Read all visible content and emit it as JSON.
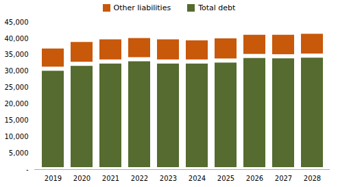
{
  "chart_data": {
    "type": "bar",
    "stacked": true,
    "categories": [
      "2019",
      "2020",
      "2021",
      "2022",
      "2023",
      "2024",
      "2025",
      "2026",
      "2027",
      "2028"
    ],
    "series": [
      {
        "name": "Total debt",
        "color": "#556B2F",
        "values": [
          30700,
          32200,
          32900,
          33600,
          32900,
          32900,
          33200,
          34600,
          34500,
          34700
        ]
      },
      {
        "name": "Other liabilities",
        "color": "#C8580A",
        "values": [
          6800,
          7300,
          7400,
          7100,
          7400,
          7100,
          7400,
          7100,
          7200,
          7300
        ]
      }
    ],
    "ylim": [
      0,
      45000
    ],
    "yticks": [
      {
        "value": 0,
        "label": "-"
      },
      {
        "value": 5000,
        "label": "5,000"
      },
      {
        "value": 10000,
        "label": "10,000"
      },
      {
        "value": 15000,
        "label": "15,000"
      },
      {
        "value": 20000,
        "label": "20,000"
      },
      {
        "value": 25000,
        "label": "25,000"
      },
      {
        "value": 30000,
        "label": "30,000"
      },
      {
        "value": 35000,
        "label": "35,000"
      },
      {
        "value": 40000,
        "label": "40,000"
      },
      {
        "value": 45000,
        "label": "45,000"
      }
    ],
    "grid": false,
    "legend": "top"
  }
}
